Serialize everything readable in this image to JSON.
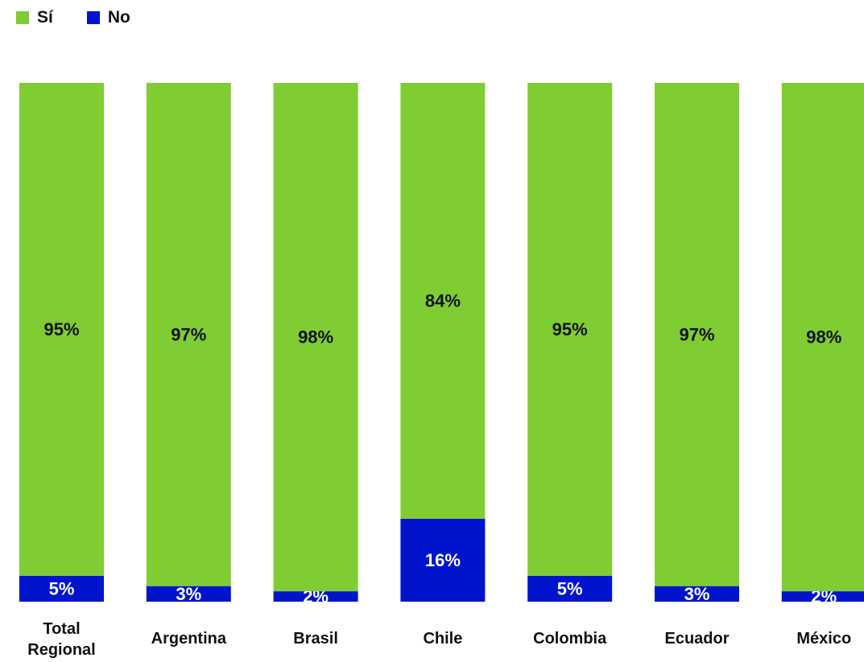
{
  "chart_data": {
    "type": "bar",
    "stacked": true,
    "percent": true,
    "categories": [
      "Total Regional",
      "Argentina",
      "Brasil",
      "Chile",
      "Colombia",
      "Ecuador",
      "México"
    ],
    "category_lines": [
      [
        "Total",
        "Regional"
      ],
      [
        "Argentina"
      ],
      [
        "Brasil"
      ],
      [
        "Chile"
      ],
      [
        "Colombia"
      ],
      [
        "Ecuador"
      ],
      [
        "México"
      ]
    ],
    "series": [
      {
        "name": "Sí",
        "color": "#80CC33",
        "label_color": "#111111",
        "values": [
          95,
          97,
          98,
          84,
          95,
          97,
          98
        ]
      },
      {
        "name": "No",
        "color": "#0014CC",
        "label_color": "#ffffff",
        "values": [
          5,
          3,
          2,
          16,
          5,
          3,
          2
        ]
      }
    ],
    "ylim": [
      0,
      100
    ],
    "grid": false,
    "legend_position": "top-left",
    "value_suffix": "%"
  }
}
